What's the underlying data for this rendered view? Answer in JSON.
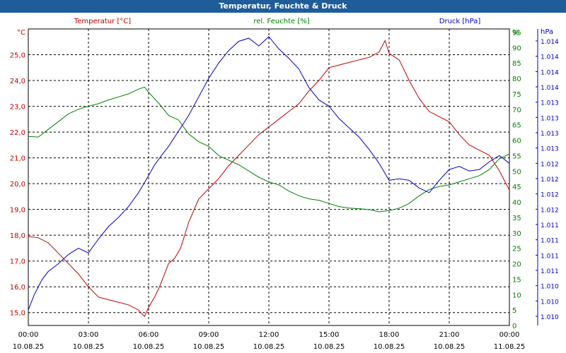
{
  "window": {
    "title": "Temperatur, Feuchte & Druck"
  },
  "colors": {
    "title_bar": "#1f5c9a",
    "temperature": "#c00000",
    "humidity": "#008000",
    "pressure": "#0000c0",
    "grid": "#000000"
  },
  "chart_data": {
    "type": "line",
    "title": "Temperatur, Feuchte & Druck",
    "series_labels": {
      "temperature": "Temperatur [°C]",
      "humidity": "rel. Feuchte [%]",
      "pressure": "Druck [hPa]"
    },
    "axes": {
      "left": {
        "unit": "°C",
        "ylim": [
          14.5,
          26.0
        ],
        "ticks": [
          "15,0",
          "16,0",
          "17,0",
          "18,0",
          "19,0",
          "20,0",
          "21,0",
          "22,0",
          "23,0",
          "24,0",
          "25,0"
        ],
        "tick_values": [
          15,
          16,
          17,
          18,
          19,
          20,
          21,
          22,
          23,
          24,
          25
        ]
      },
      "mid": {
        "unit": "%",
        "ylim": [
          0,
          96
        ],
        "ticks": [
          "0",
          "5",
          "10",
          "15",
          "20",
          "25",
          "30",
          "35",
          "40",
          "45",
          "50",
          "55",
          "60",
          "65",
          "70",
          "75",
          "80",
          "85",
          "90",
          "95"
        ],
        "tick_values": [
          0,
          5,
          10,
          15,
          20,
          25,
          30,
          35,
          40,
          45,
          50,
          55,
          60,
          65,
          70,
          75,
          80,
          85,
          90,
          95
        ]
      },
      "right": {
        "unit": "hPa",
        "tick_labels": [
          "1.010",
          "1.010",
          "1.010",
          "1.011",
          "1.011",
          "1.011",
          "1.011",
          "1.012",
          "1.012",
          "1.012",
          "1.012",
          "1.013",
          "1.013",
          "1.013",
          "1.013",
          "1.014",
          "1.014",
          "1.014",
          "1.014"
        ]
      },
      "x": {
        "range": [
          0,
          24
        ],
        "ticks": [
          {
            "time": "00:00",
            "date": "10.08.25",
            "hour": 0
          },
          {
            "time": "03:00",
            "date": "10.08.25",
            "hour": 3
          },
          {
            "time": "06:00",
            "date": "10.08.25",
            "hour": 6
          },
          {
            "time": "09:00",
            "date": "10.08.25",
            "hour": 9
          },
          {
            "time": "12:00",
            "date": "10.08.25",
            "hour": 12
          },
          {
            "time": "15:00",
            "date": "10.08.25",
            "hour": 15
          },
          {
            "time": "18:00",
            "date": "10.08.25",
            "hour": 18
          },
          {
            "time": "21:00",
            "date": "10.08.25",
            "hour": 21
          },
          {
            "time": "00:00",
            "date": "11.08.25",
            "hour": 24
          }
        ]
      }
    },
    "series": [
      {
        "name": "Temperatur [°C]",
        "key": "temperature",
        "axis": "left",
        "points": [
          [
            0,
            17.95
          ],
          [
            0.5,
            17.9
          ],
          [
            1,
            17.7
          ],
          [
            1.5,
            17.3
          ],
          [
            2,
            16.9
          ],
          [
            2.5,
            16.5
          ],
          [
            3,
            16.0
          ],
          [
            3.5,
            15.6
          ],
          [
            4,
            15.5
          ],
          [
            4.5,
            15.4
          ],
          [
            5,
            15.3
          ],
          [
            5.5,
            15.1
          ],
          [
            5.8,
            14.85
          ],
          [
            6,
            15.2
          ],
          [
            6.3,
            15.6
          ],
          [
            6.6,
            16.1
          ],
          [
            7,
            16.9
          ],
          [
            7.3,
            17.1
          ],
          [
            7.6,
            17.5
          ],
          [
            8,
            18.5
          ],
          [
            8.5,
            19.4
          ],
          [
            9,
            19.8
          ],
          [
            9.5,
            20.2
          ],
          [
            10,
            20.7
          ],
          [
            10.5,
            21.1
          ],
          [
            11,
            21.5
          ],
          [
            11.5,
            21.9
          ],
          [
            12,
            22.2
          ],
          [
            12.5,
            22.5
          ],
          [
            13,
            22.8
          ],
          [
            13.5,
            23.1
          ],
          [
            14,
            23.6
          ],
          [
            14.5,
            24.0
          ],
          [
            15,
            24.5
          ],
          [
            15.5,
            24.6
          ],
          [
            16,
            24.7
          ],
          [
            16.5,
            24.8
          ],
          [
            17,
            24.9
          ],
          [
            17.5,
            25.1
          ],
          [
            17.8,
            25.55
          ],
          [
            18,
            25.05
          ],
          [
            18.5,
            24.8
          ],
          [
            19,
            24.0
          ],
          [
            19.5,
            23.3
          ],
          [
            20,
            22.8
          ],
          [
            20.5,
            22.6
          ],
          [
            21,
            22.4
          ],
          [
            21.5,
            21.9
          ],
          [
            22,
            21.5
          ],
          [
            22.5,
            21.3
          ],
          [
            23,
            21.1
          ],
          [
            23.5,
            20.5
          ],
          [
            24,
            19.75
          ]
        ]
      },
      {
        "name": "rel. Feuchte [%]",
        "key": "humidity",
        "axis": "mid",
        "points": [
          [
            0,
            61.2
          ],
          [
            0.5,
            61.0
          ],
          [
            1,
            63.5
          ],
          [
            1.5,
            66.0
          ],
          [
            2,
            68.5
          ],
          [
            2.5,
            70.0
          ],
          [
            3,
            71.0
          ],
          [
            3.5,
            71.8
          ],
          [
            4,
            73.0
          ],
          [
            4.5,
            74.0
          ],
          [
            5,
            75.0
          ],
          [
            5.5,
            76.5
          ],
          [
            5.8,
            77.2
          ],
          [
            6,
            75.5
          ],
          [
            6.5,
            72.0
          ],
          [
            7,
            68.0
          ],
          [
            7.5,
            66.5
          ],
          [
            8,
            62.0
          ],
          [
            8.5,
            59.5
          ],
          [
            9,
            58.0
          ],
          [
            9.5,
            55.0
          ],
          [
            10,
            53.5
          ],
          [
            10.5,
            52.0
          ],
          [
            11,
            50.0
          ],
          [
            11.5,
            48.0
          ],
          [
            12,
            46.5
          ],
          [
            12.5,
            45.5
          ],
          [
            13,
            43.5
          ],
          [
            13.5,
            42.0
          ],
          [
            14,
            41.0
          ],
          [
            14.5,
            40.5
          ],
          [
            15,
            39.5
          ],
          [
            15.5,
            38.5
          ],
          [
            16,
            38.0
          ],
          [
            16.5,
            37.8
          ],
          [
            17,
            37.5
          ],
          [
            17.5,
            36.8
          ],
          [
            18,
            37.2
          ],
          [
            18.5,
            38.0
          ],
          [
            19,
            39.5
          ],
          [
            19.5,
            42.0
          ],
          [
            20,
            44.0
          ],
          [
            20.5,
            45.0
          ],
          [
            21,
            45.5
          ],
          [
            21.5,
            46.5
          ],
          [
            22,
            47.5
          ],
          [
            22.5,
            48.5
          ],
          [
            23,
            50.5
          ],
          [
            23.5,
            54.0
          ],
          [
            24,
            55.5
          ]
        ]
      },
      {
        "name": "Druck [hPa]",
        "key": "pressure",
        "axis": "mid",
        "points": [
          [
            0,
            5.0
          ],
          [
            0.3,
            10.0
          ],
          [
            0.7,
            15.0
          ],
          [
            1,
            17.5
          ],
          [
            1.5,
            20.0
          ],
          [
            2,
            23.0
          ],
          [
            2.5,
            25.0
          ],
          [
            3,
            23.5
          ],
          [
            3.5,
            28.0
          ],
          [
            4,
            32.0
          ],
          [
            4.5,
            35.0
          ],
          [
            5,
            38.5
          ],
          [
            5.5,
            43.0
          ],
          [
            6,
            48.5
          ],
          [
            6.3,
            52.0
          ],
          [
            6.7,
            55.5
          ],
          [
            7,
            58.0
          ],
          [
            7.5,
            63.0
          ],
          [
            8,
            68.0
          ],
          [
            8.5,
            74.0
          ],
          [
            9,
            80.0
          ],
          [
            9.5,
            85.0
          ],
          [
            10,
            89.0
          ],
          [
            10.5,
            92.0
          ],
          [
            11,
            93.0
          ],
          [
            11.5,
            90.5
          ],
          [
            12,
            93.5
          ],
          [
            12.5,
            89.5
          ],
          [
            13,
            86.5
          ],
          [
            13.5,
            83.0
          ],
          [
            14,
            77.0
          ],
          [
            14.5,
            73.0
          ],
          [
            15,
            71.0
          ],
          [
            15.5,
            67.0
          ],
          [
            16,
            64.0
          ],
          [
            16.5,
            61.0
          ],
          [
            17,
            57.0
          ],
          [
            17.5,
            52.5
          ],
          [
            18,
            47.0
          ],
          [
            18.5,
            47.5
          ],
          [
            19,
            47.0
          ],
          [
            19.5,
            44.5
          ],
          [
            20,
            43.0
          ],
          [
            20.5,
            47.0
          ],
          [
            21,
            50.5
          ],
          [
            21.5,
            51.5
          ],
          [
            22,
            50.0
          ],
          [
            22.5,
            50.5
          ],
          [
            23,
            53.0
          ],
          [
            23.5,
            55.0
          ],
          [
            24,
            52.5
          ]
        ]
      }
    ]
  }
}
